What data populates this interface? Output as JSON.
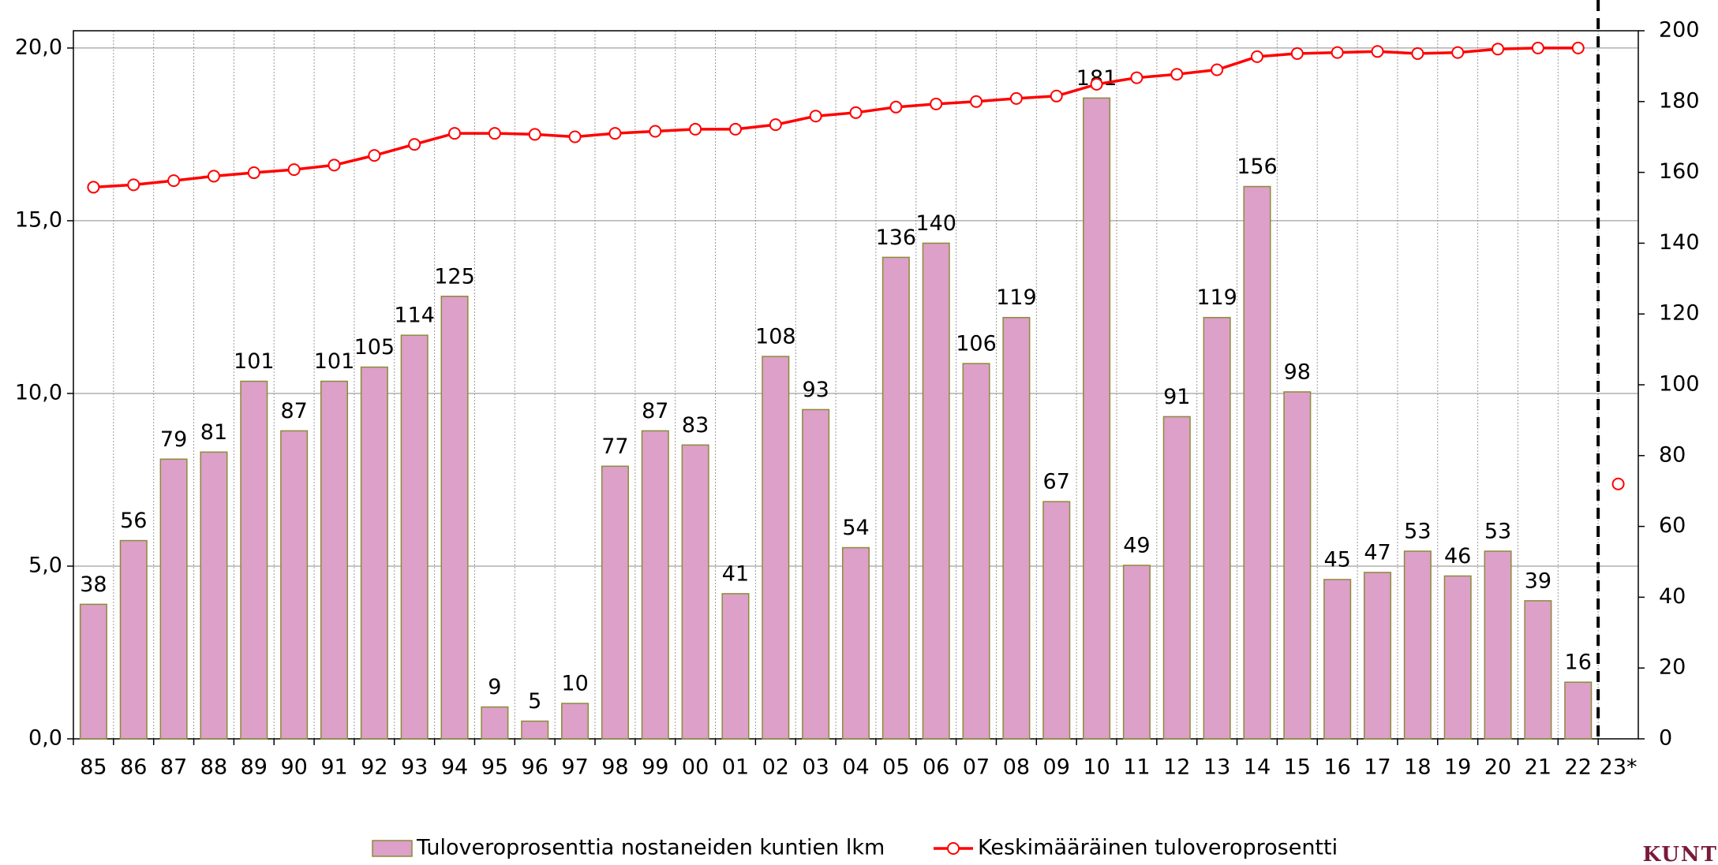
{
  "chart_data": {
    "type": "bar",
    "categories": [
      "85",
      "86",
      "87",
      "88",
      "89",
      "90",
      "91",
      "92",
      "93",
      "94",
      "95",
      "96",
      "97",
      "98",
      "99",
      "00",
      "01",
      "02",
      "03",
      "04",
      "05",
      "06",
      "07",
      "08",
      "09",
      "10",
      "11",
      "12",
      "13",
      "14",
      "15",
      "16",
      "17",
      "18",
      "19",
      "20",
      "21",
      "22",
      "23*"
    ],
    "series": [
      {
        "name": "Tuloveroprosenttia nostaneiden kuntien lkm",
        "type": "bar",
        "axis": "y2",
        "color": "#dda0c8",
        "edge_color": "#8b8b3a",
        "values": [
          38,
          56,
          79,
          81,
          101,
          87,
          101,
          105,
          114,
          125,
          9,
          5,
          10,
          77,
          87,
          83,
          41,
          108,
          93,
          54,
          136,
          140,
          106,
          119,
          67,
          181,
          49,
          91,
          119,
          156,
          98,
          45,
          47,
          53,
          46,
          53,
          39,
          16,
          null
        ]
      },
      {
        "name": "Keskimääräinen tuloveroprosentti",
        "type": "line",
        "axis": "y",
        "color": "#ff0000",
        "values": [
          15.97,
          16.04,
          16.16,
          16.29,
          16.39,
          16.48,
          16.61,
          16.89,
          17.21,
          17.53,
          17.53,
          17.5,
          17.43,
          17.53,
          17.59,
          17.65,
          17.65,
          17.78,
          18.03,
          18.13,
          18.29,
          18.38,
          18.45,
          18.54,
          18.61,
          18.95,
          19.14,
          19.24,
          19.37,
          19.75,
          19.84,
          19.87,
          19.9,
          19.84,
          19.87,
          19.97,
          20.0,
          20.0,
          null
        ]
      },
      {
        "type": "marker",
        "axis": "y2",
        "color": "#ff0000",
        "values": [
          null,
          null,
          null,
          null,
          null,
          null,
          null,
          null,
          null,
          null,
          null,
          null,
          null,
          null,
          null,
          null,
          null,
          null,
          null,
          null,
          null,
          null,
          null,
          null,
          null,
          null,
          null,
          null,
          null,
          null,
          null,
          null,
          null,
          null,
          null,
          null,
          null,
          null,
          72
        ]
      }
    ],
    "ylim": [
      0,
      20.5
    ],
    "yticks": [
      {
        "value": 0,
        "label": "0,0"
      },
      {
        "value": 5,
        "label": "5,0"
      },
      {
        "value": 10,
        "label": "10,0"
      },
      {
        "value": 15,
        "label": "15,0"
      },
      {
        "value": 20,
        "label": "20,0"
      }
    ],
    "y2lim": [
      0,
      200
    ],
    "y2ticks": [
      0,
      20,
      40,
      60,
      80,
      100,
      120,
      140,
      160,
      180,
      200
    ],
    "grid": true,
    "legend": "bottom"
  },
  "logo": "KUNT"
}
